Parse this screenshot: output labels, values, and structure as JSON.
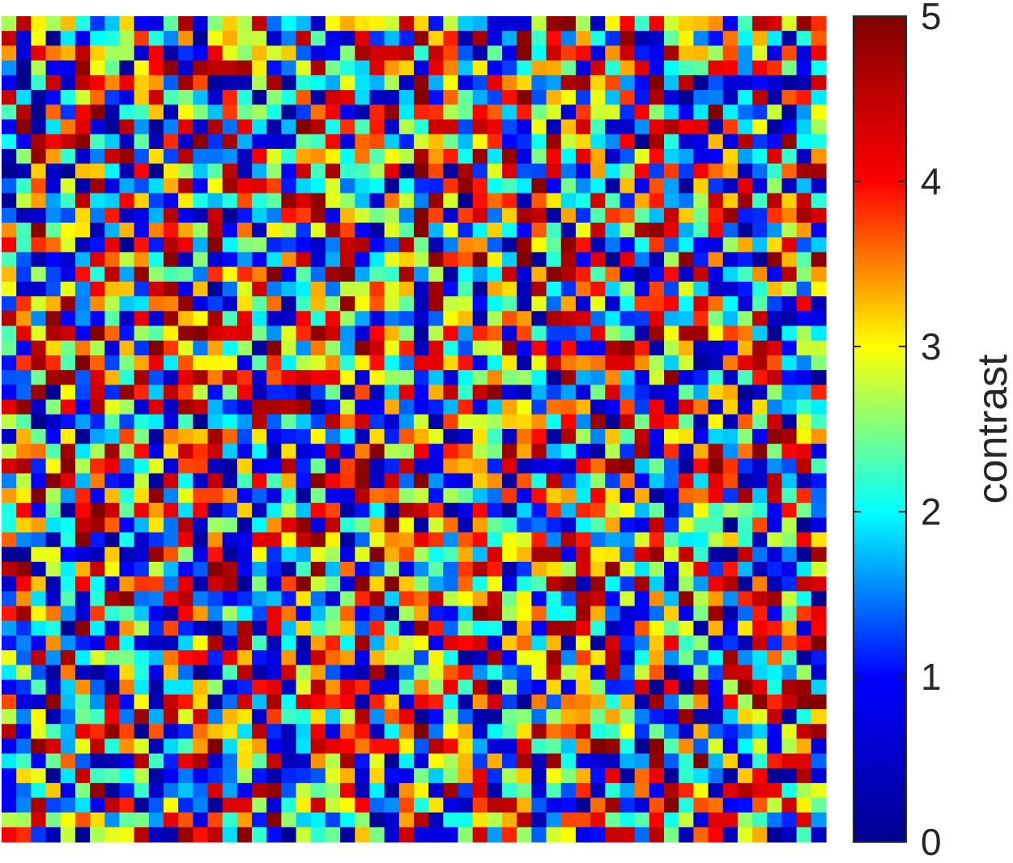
{
  "chart_data": {
    "type": "heatmap",
    "title": "",
    "xlabel": "",
    "ylabel": "",
    "grid": false,
    "colormap": "jet",
    "colormap_stops": [
      "#00008f",
      "#0000ff",
      "#00ffff",
      "#ffff00",
      "#ff0000",
      "#800000"
    ],
    "rows": 56,
    "cols": 56,
    "value_range": [
      0,
      5
    ],
    "colorbar": {
      "label": "contrast",
      "limits": [
        0,
        5
      ],
      "ticks": [
        0,
        1,
        2,
        3,
        4,
        5
      ],
      "tick_labels": [
        "0",
        "1",
        "2",
        "3",
        "4",
        "5"
      ],
      "position": "right"
    },
    "values_note": "",
    "seed": 20240611
  }
}
